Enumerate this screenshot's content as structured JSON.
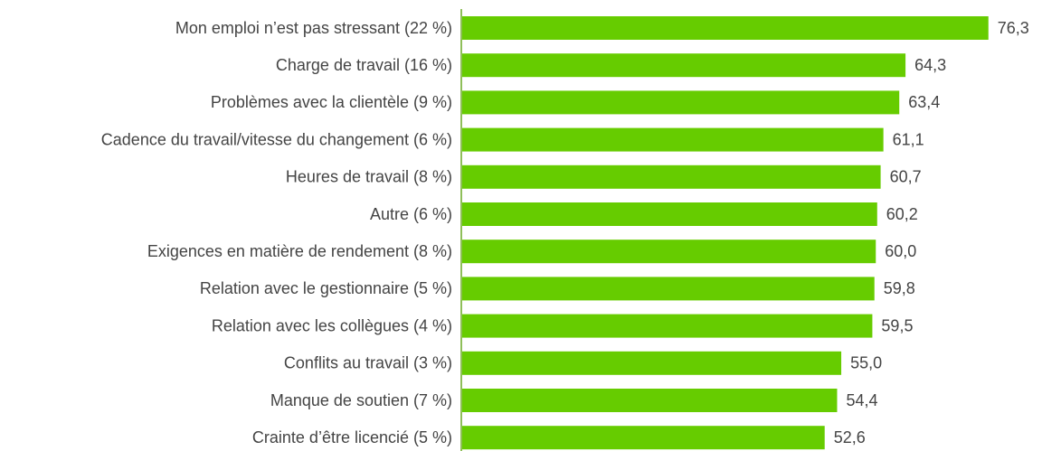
{
  "chart_data": {
    "type": "barh",
    "categories": [
      "Mon emploi n’est pas stressant (22 %)",
      "Charge de travail (16 %)",
      "Problèmes avec la clientèle (9 %)",
      "Cadence du travail/vitesse du changement (6 %)",
      "Heures de travail (8 %)",
      "Autre (6 %)",
      "Exigences en matière de rendement (8 %)",
      "Relation avec le gestionnaire (5 %)",
      "Relation avec les collègues (4 %)",
      "Conflits au travail (3 %)",
      "Manque de soutien (7 %)",
      "Crainte d’être licencié (5 %)"
    ],
    "values": [
      76.3,
      64.3,
      63.4,
      61.1,
      60.7,
      60.2,
      60.0,
      59.8,
      59.5,
      55.0,
      54.4,
      52.6
    ],
    "value_labels": [
      "76,3",
      "64,3",
      "63,4",
      "61,1",
      "60,7",
      "60,2",
      "60,0",
      "59,8",
      "59,5",
      "55,0",
      "54,4",
      "52,6"
    ],
    "color": "#66cc00",
    "xlim": [
      0,
      80
    ]
  }
}
